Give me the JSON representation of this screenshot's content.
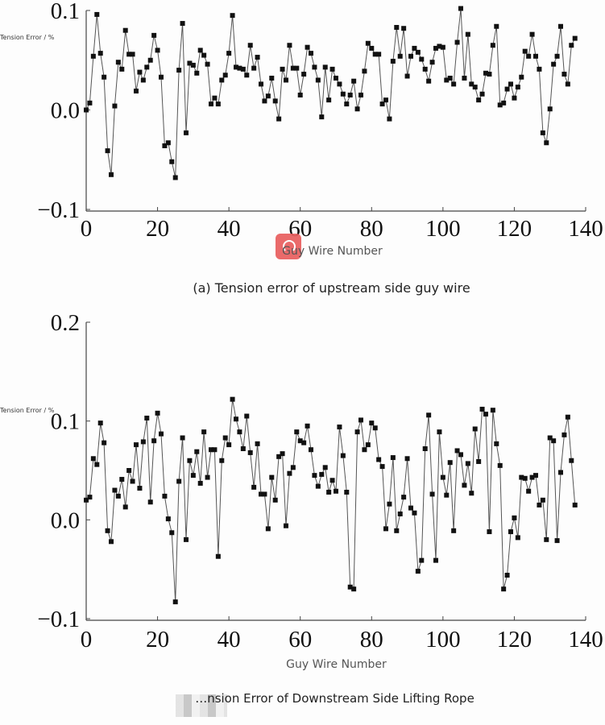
{
  "chart_data": [
    {
      "type": "line",
      "title": "(a) Tension error of upstream side guy wire",
      "xlabel": "Guy Wire Number",
      "ylabel": "Tension Error / %",
      "xlim": [
        0,
        140
      ],
      "ylim": [
        -0.1,
        0.1
      ],
      "xticks": [
        "0",
        "20",
        "40",
        "60",
        "80",
        "100",
        "120",
        "140"
      ],
      "yticks": [
        "−0.1",
        "0.0",
        "0.1"
      ],
      "ytick_values": [
        -0.1,
        0.0,
        0.1
      ],
      "grid": false,
      "marker": "square",
      "color": "#111111",
      "x_start": 0,
      "values": [
        0.0,
        0.007,
        0.054,
        0.096,
        0.057,
        0.033,
        -0.041,
        -0.065,
        0.004,
        0.048,
        0.041,
        0.08,
        0.056,
        0.056,
        0.019,
        0.038,
        0.03,
        0.043,
        0.05,
        0.075,
        0.06,
        0.033,
        -0.036,
        -0.033,
        -0.052,
        -0.068,
        0.04,
        0.087,
        -0.023,
        0.047,
        0.045,
        0.037,
        0.06,
        0.055,
        0.046,
        0.006,
        0.012,
        0.006,
        0.03,
        0.035,
        0.057,
        0.095,
        0.043,
        0.042,
        0.041,
        0.035,
        0.065,
        0.042,
        0.053,
        0.026,
        0.009,
        0.014,
        0.032,
        0.009,
        -0.009,
        0.041,
        0.03,
        0.065,
        0.042,
        0.042,
        0.015,
        0.036,
        0.063,
        0.057,
        0.043,
        0.03,
        -0.007,
        0.043,
        0.01,
        0.041,
        0.032,
        0.026,
        0.016,
        0.006,
        0.015,
        0.029,
        0.001,
        0.015,
        0.039,
        0.067,
        0.062,
        0.056,
        0.056,
        0.006,
        0.01,
        -0.009,
        0.049,
        0.083,
        0.054,
        0.082,
        0.034,
        0.054,
        0.062,
        0.058,
        0.051,
        0.041,
        0.029,
        0.048,
        0.062,
        0.064,
        0.063,
        0.03,
        0.032,
        0.026,
        0.068,
        0.102,
        0.032,
        0.076,
        0.026,
        0.023,
        0.01,
        0.016,
        0.037,
        0.036,
        0.065,
        0.084,
        0.005,
        0.007,
        0.021,
        0.026,
        0.012,
        0.023,
        0.033,
        0.059,
        0.054,
        0.076,
        0.054,
        0.041,
        -0.023,
        -0.033,
        0.001,
        0.046,
        0.054,
        0.084,
        0.036,
        0.026,
        0.065,
        0.072
      ]
    },
    {
      "type": "line",
      "title": "…nsion Error of Downstream Side Lifting Rope",
      "xlabel": "Guy Wire Number",
      "ylabel": "Tension Error / %",
      "xlim": [
        0,
        140
      ],
      "ylim": [
        -0.1,
        0.2
      ],
      "xticks": [
        "0",
        "20",
        "40",
        "60",
        "80",
        "100",
        "120",
        "140"
      ],
      "yticks": [
        "−0.1",
        "0.0",
        "0.1",
        "0.2"
      ],
      "ytick_values": [
        -0.1,
        0.0,
        0.1,
        0.2
      ],
      "grid": false,
      "marker": "square",
      "color": "#111111",
      "x_start": 0,
      "values": [
        0.02,
        0.023,
        0.062,
        0.056,
        0.098,
        0.078,
        -0.011,
        -0.022,
        0.03,
        0.024,
        0.041,
        0.013,
        0.05,
        0.039,
        0.076,
        0.032,
        0.079,
        0.103,
        0.018,
        0.08,
        0.108,
        0.087,
        0.024,
        0.001,
        -0.013,
        -0.083,
        0.039,
        0.083,
        -0.02,
        0.06,
        0.045,
        0.069,
        0.037,
        0.089,
        0.043,
        0.071,
        0.071,
        -0.037,
        0.06,
        0.083,
        0.076,
        0.122,
        0.102,
        0.089,
        0.072,
        0.105,
        0.068,
        0.033,
        0.077,
        0.026,
        0.026,
        -0.009,
        0.043,
        0.02,
        0.064,
        0.067,
        -0.006,
        0.047,
        0.053,
        0.089,
        0.08,
        0.078,
        0.095,
        0.071,
        0.045,
        0.034,
        0.046,
        0.053,
        0.028,
        0.04,
        0.029,
        0.094,
        0.065,
        0.028,
        -0.068,
        -0.07,
        0.089,
        0.101,
        0.071,
        0.076,
        0.098,
        0.093,
        0.061,
        0.054,
        -0.009,
        0.016,
        0.063,
        -0.011,
        0.006,
        0.023,
        0.062,
        0.012,
        0.007,
        -0.052,
        -0.041,
        0.072,
        0.106,
        0.026,
        -0.041,
        0.089,
        0.043,
        0.025,
        0.058,
        -0.011,
        0.07,
        0.066,
        0.035,
        0.057,
        0.027,
        0.092,
        0.059,
        0.112,
        0.107,
        -0.012,
        0.111,
        0.077,
        0.055,
        -0.07,
        -0.056,
        -0.012,
        0.002,
        -0.018,
        0.043,
        0.042,
        0.029,
        0.043,
        0.045,
        0.015,
        0.02,
        -0.02,
        0.083,
        0.08,
        -0.021,
        0.048,
        0.086,
        0.104,
        0.06,
        0.015
      ]
    }
  ]
}
